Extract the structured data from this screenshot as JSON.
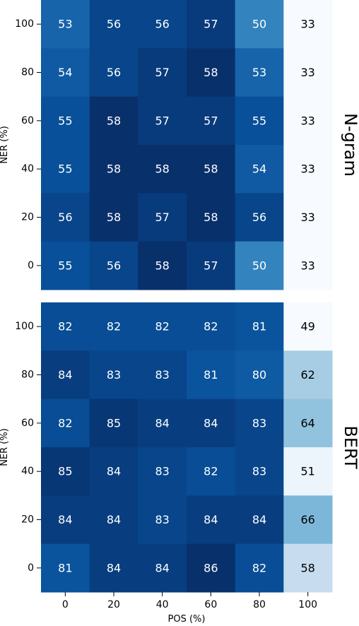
{
  "chart_data": [
    {
      "type": "heatmap",
      "title": "N-gram",
      "xlabel": "",
      "ylabel": "NER (%)",
      "x_categories": [
        "0",
        "20",
        "40",
        "60",
        "80",
        "100"
      ],
      "y_categories": [
        "100",
        "80",
        "60",
        "40",
        "20",
        "0"
      ],
      "values": [
        [
          53,
          56,
          56,
          57,
          50,
          33
        ],
        [
          54,
          56,
          57,
          58,
          53,
          33
        ],
        [
          55,
          58,
          57,
          57,
          55,
          33
        ],
        [
          55,
          58,
          58,
          58,
          54,
          33
        ],
        [
          56,
          58,
          57,
          58,
          56,
          33
        ],
        [
          55,
          56,
          58,
          57,
          50,
          33
        ]
      ],
      "colormap": "Blues",
      "colorbar": false
    },
    {
      "type": "heatmap",
      "title": "BERT",
      "xlabel": "POS (%)",
      "ylabel": "NER (%)",
      "x_categories": [
        "0",
        "20",
        "40",
        "60",
        "80",
        "100"
      ],
      "y_categories": [
        "100",
        "80",
        "60",
        "40",
        "20",
        "0"
      ],
      "values": [
        [
          82,
          82,
          82,
          82,
          81,
          49
        ],
        [
          84,
          83,
          83,
          81,
          80,
          62
        ],
        [
          82,
          85,
          84,
          84,
          83,
          64
        ],
        [
          85,
          84,
          83,
          82,
          83,
          51
        ],
        [
          84,
          84,
          83,
          84,
          84,
          66
        ],
        [
          81,
          84,
          84,
          86,
          82,
          58
        ]
      ],
      "colormap": "Blues",
      "colorbar": false
    }
  ]
}
